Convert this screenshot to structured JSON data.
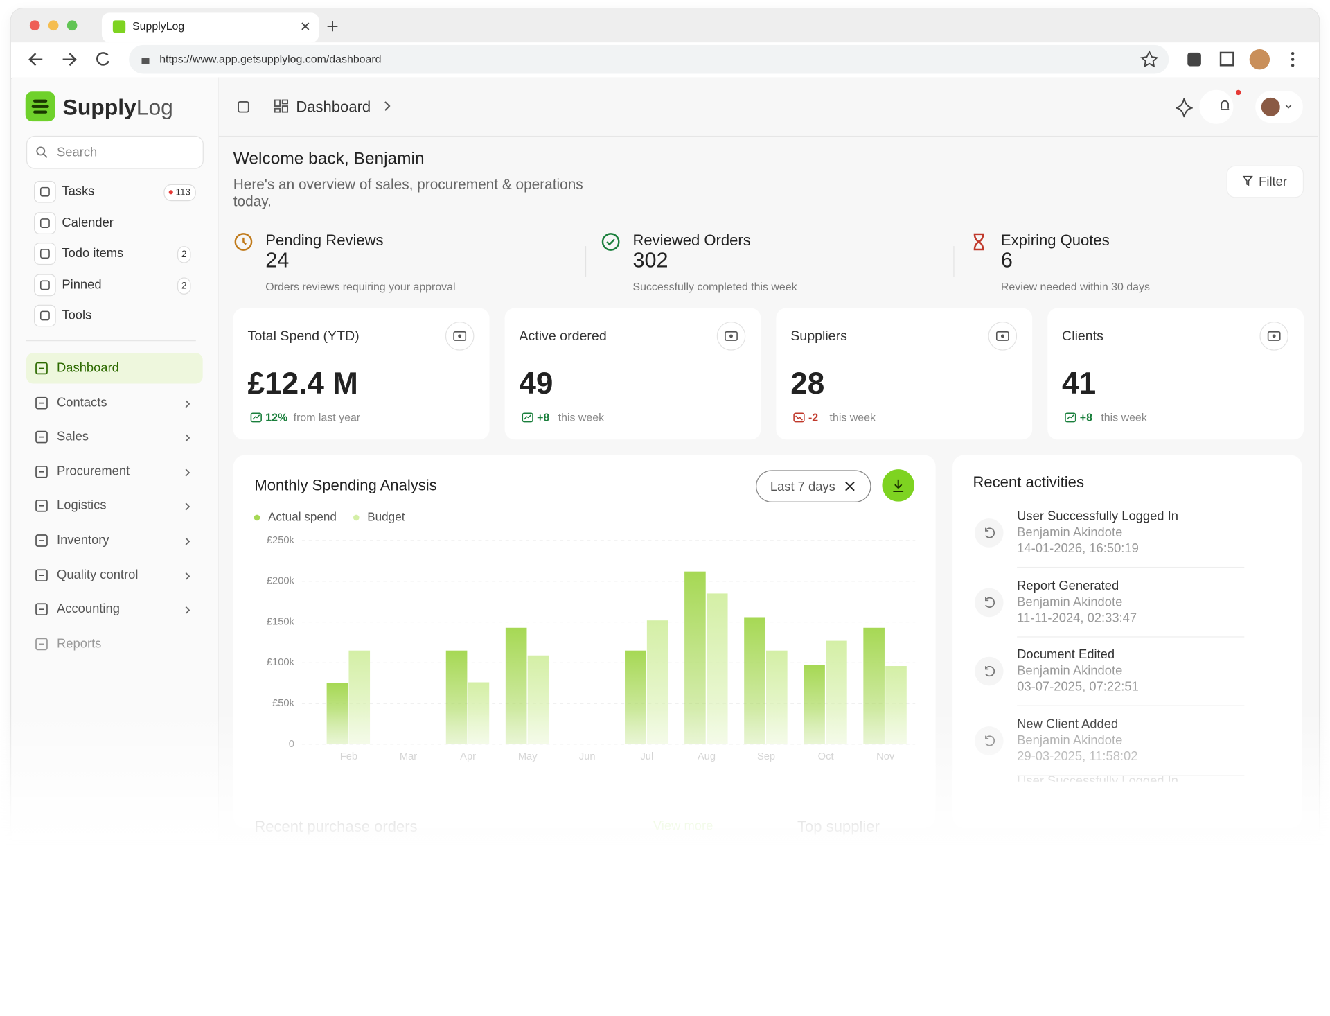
{
  "browser": {
    "tab": "SupplyLog",
    "url": "https://www.app.getsupplylog.com/dashboard"
  },
  "sidebar": {
    "brand_a": "Supply",
    "brand_b": "Log",
    "search": "Search",
    "tools": [
      {
        "label": "Tasks",
        "badge": "113"
      },
      {
        "label": "Calender"
      },
      {
        "label": "Todo items",
        "badge": "2"
      },
      {
        "label": "Pinned",
        "badge": "2"
      },
      {
        "label": "Tools"
      }
    ],
    "nav": [
      "Dashboard",
      "Contacts",
      "Sales",
      "Procurement",
      "Logistics",
      "Inventory",
      "Quality control",
      "Accounting",
      "Reports"
    ]
  },
  "header": {
    "breadcrumb": "Dashboard"
  },
  "welcome": {
    "title": "Welcome back, Benjamin",
    "subtitle": "Here's an overview of sales, procurement & operations today.",
    "filter": "Filter"
  },
  "summary": [
    {
      "label": "Pending Reviews",
      "value": "24",
      "note": "Orders reviews requiring your approval"
    },
    {
      "label": "Reviewed Orders",
      "value": "302",
      "note": "Successfully completed this week"
    },
    {
      "label": "Expiring Quotes",
      "value": "6",
      "note": "Review needed within 30 days"
    }
  ],
  "cards": [
    {
      "label": "Total Spend (YTD)",
      "value": "£12.4 M",
      "change": "12%",
      "note": "from last year"
    },
    {
      "label": "Active ordered",
      "value": "49",
      "change": "+8",
      "note": "this week"
    },
    {
      "label": "Suppliers",
      "value": "28",
      "change": "-2",
      "note": "this week"
    },
    {
      "label": "Clients",
      "value": "41",
      "change": "+8",
      "note": "this week"
    }
  ],
  "chart_data": {
    "type": "bar",
    "title": "Monthly Spending Analysis",
    "range": "Last 7 days",
    "categories": [
      "Feb",
      "Mar",
      "Apr",
      "May",
      "Jun",
      "Jul",
      "Aug",
      "Sep",
      "Oct",
      "Nov"
    ],
    "series": [
      {
        "name": "Actual spend",
        "color": "#a6d854",
        "values": [
          75000,
          null,
          115000,
          143000,
          null,
          115000,
          212000,
          156000,
          97000,
          143000
        ]
      },
      {
        "name": "Budget",
        "color": "#d4efa6",
        "values": [
          115000,
          null,
          76000,
          109000,
          null,
          152000,
          185000,
          115000,
          127000,
          96000
        ]
      }
    ],
    "ylim": [
      0,
      250000
    ],
    "yticks": [
      0,
      {
        "value": 50000,
        "label": "£50k"
      },
      {
        "value": 100000,
        "label": "£100k"
      },
      {
        "value": 150000,
        "label": "£150k"
      },
      {
        "value": 200000,
        "label": "£200k"
      },
      {
        "value": 250000,
        "label": "£250k"
      }
    ],
    "grid": true
  },
  "activities": {
    "title": "Recent activities",
    "items": [
      {
        "title": "User Successfully Logged In",
        "user": "Benjamin Akindote",
        "time": "14-01-2026,  16:50:19"
      },
      {
        "title": "Report Generated",
        "user": "Benjamin Akindote",
        "time": "11-11-2024, 02:33:47"
      },
      {
        "title": "Document Edited",
        "user": "Benjamin Akindote",
        "time": "03-07-2025, 07:22:51"
      },
      {
        "title": "New Client Added",
        "user": "Benjamin Akindote",
        "time": "29-03-2025, 11:58:02"
      }
    ],
    "more": "User Successfully Logged In"
  },
  "footer": {
    "left": "Recent purchase orders",
    "link": "View more",
    "right": "Top supplier"
  }
}
